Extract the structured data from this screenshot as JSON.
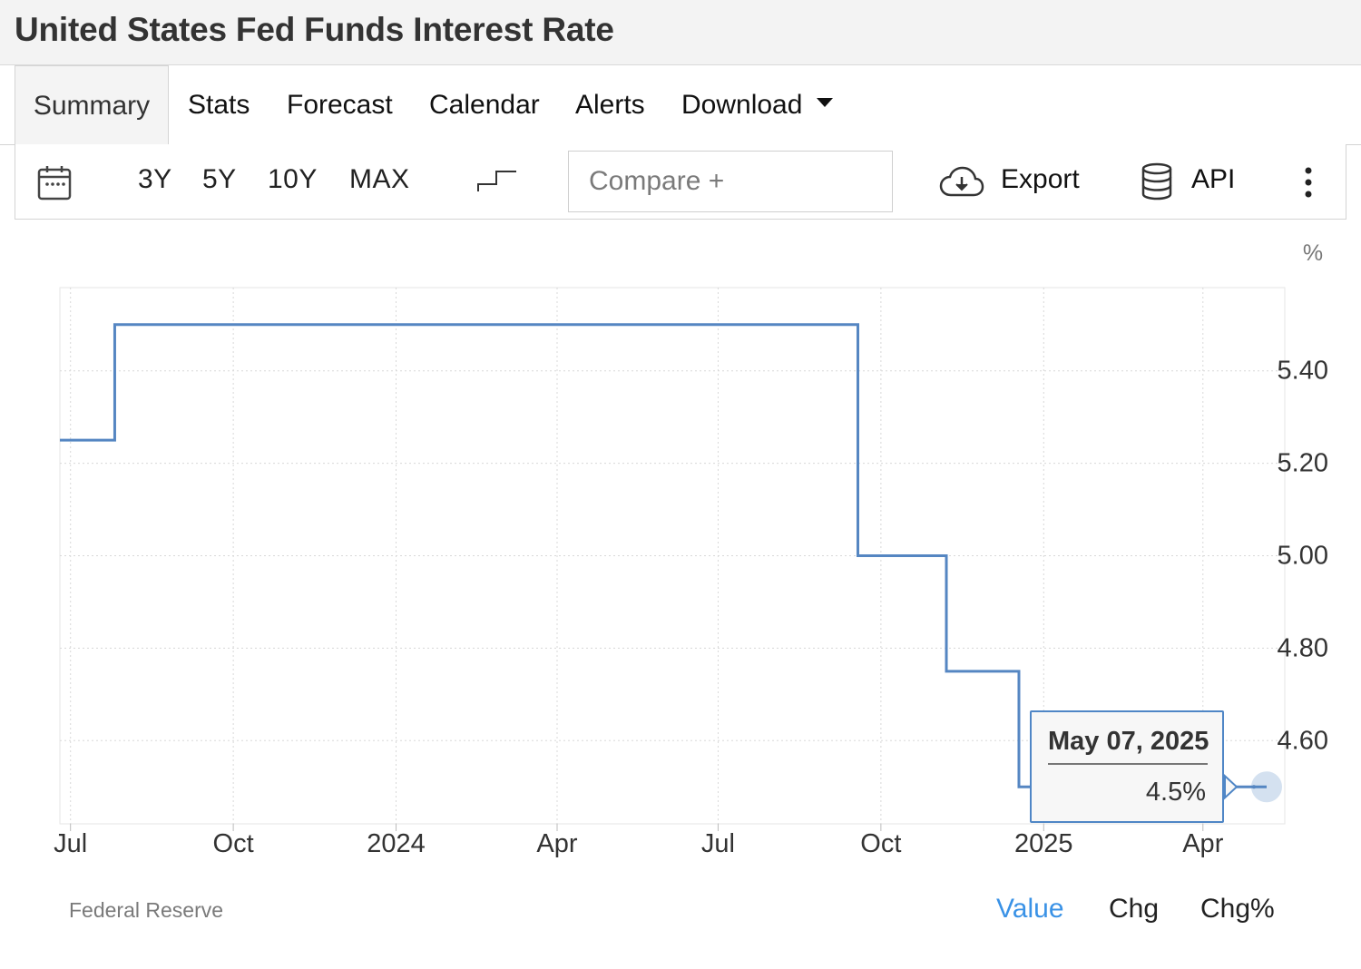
{
  "page": {
    "title": "United States Fed Funds Interest Rate"
  },
  "tabs": [
    {
      "label": "Summary",
      "active": true
    },
    {
      "label": "Stats"
    },
    {
      "label": "Forecast"
    },
    {
      "label": "Calendar"
    },
    {
      "label": "Alerts"
    },
    {
      "label": "Download",
      "has_dropdown": true
    }
  ],
  "toolbar": {
    "calendar_icon": "calendar-icon",
    "ranges": [
      "3Y",
      "5Y",
      "10Y",
      "MAX"
    ],
    "chart_type_icon": "step-line-icon",
    "compare_placeholder": "Compare +",
    "export_label": "Export",
    "export_icon": "cloud-download-icon",
    "api_label": "API",
    "api_icon": "database-icon",
    "more_icon": "more-vertical-icon"
  },
  "tooltip": {
    "date": "May 07, 2025",
    "value": "4.5%"
  },
  "footer": {
    "source": "Federal Reserve",
    "modes": [
      {
        "label": "Value",
        "active": true
      },
      {
        "label": "Chg"
      },
      {
        "label": "Chg%"
      }
    ]
  },
  "colors": {
    "line": "#5586c2",
    "active_link": "#3a92e6",
    "tooltip_border": "#4f86c6"
  },
  "chart_data": {
    "type": "line",
    "step": true,
    "unit_label": "%",
    "x_ticks": [
      "Jul",
      "Oct",
      "2024",
      "Apr",
      "Jul",
      "Oct",
      "2025",
      "Apr"
    ],
    "x_tick_dates": [
      "2023-07-01",
      "2023-10-01",
      "2024-01-01",
      "2024-04-01",
      "2024-07-01",
      "2024-10-01",
      "2025-01-01",
      "2025-04-01"
    ],
    "y_ticks": [
      "5.40",
      "5.20",
      "5.00",
      "4.80",
      "4.60"
    ],
    "y_tick_values": [
      5.4,
      5.2,
      5.0,
      4.8,
      4.6
    ],
    "xlim": [
      "2023-06-25",
      "2025-05-07"
    ],
    "ylim": [
      4.42,
      5.58
    ],
    "grid": true,
    "series": [
      {
        "points": [
          {
            "x": "2023-06-25",
            "y": 5.25
          },
          {
            "x": "2023-07-26",
            "y": 5.5
          },
          {
            "x": "2024-09-18",
            "y": 5.0
          },
          {
            "x": "2024-11-07",
            "y": 4.75
          },
          {
            "x": "2024-12-18",
            "y": 4.5
          },
          {
            "x": "2025-05-07",
            "y": 4.5
          }
        ]
      }
    ]
  }
}
